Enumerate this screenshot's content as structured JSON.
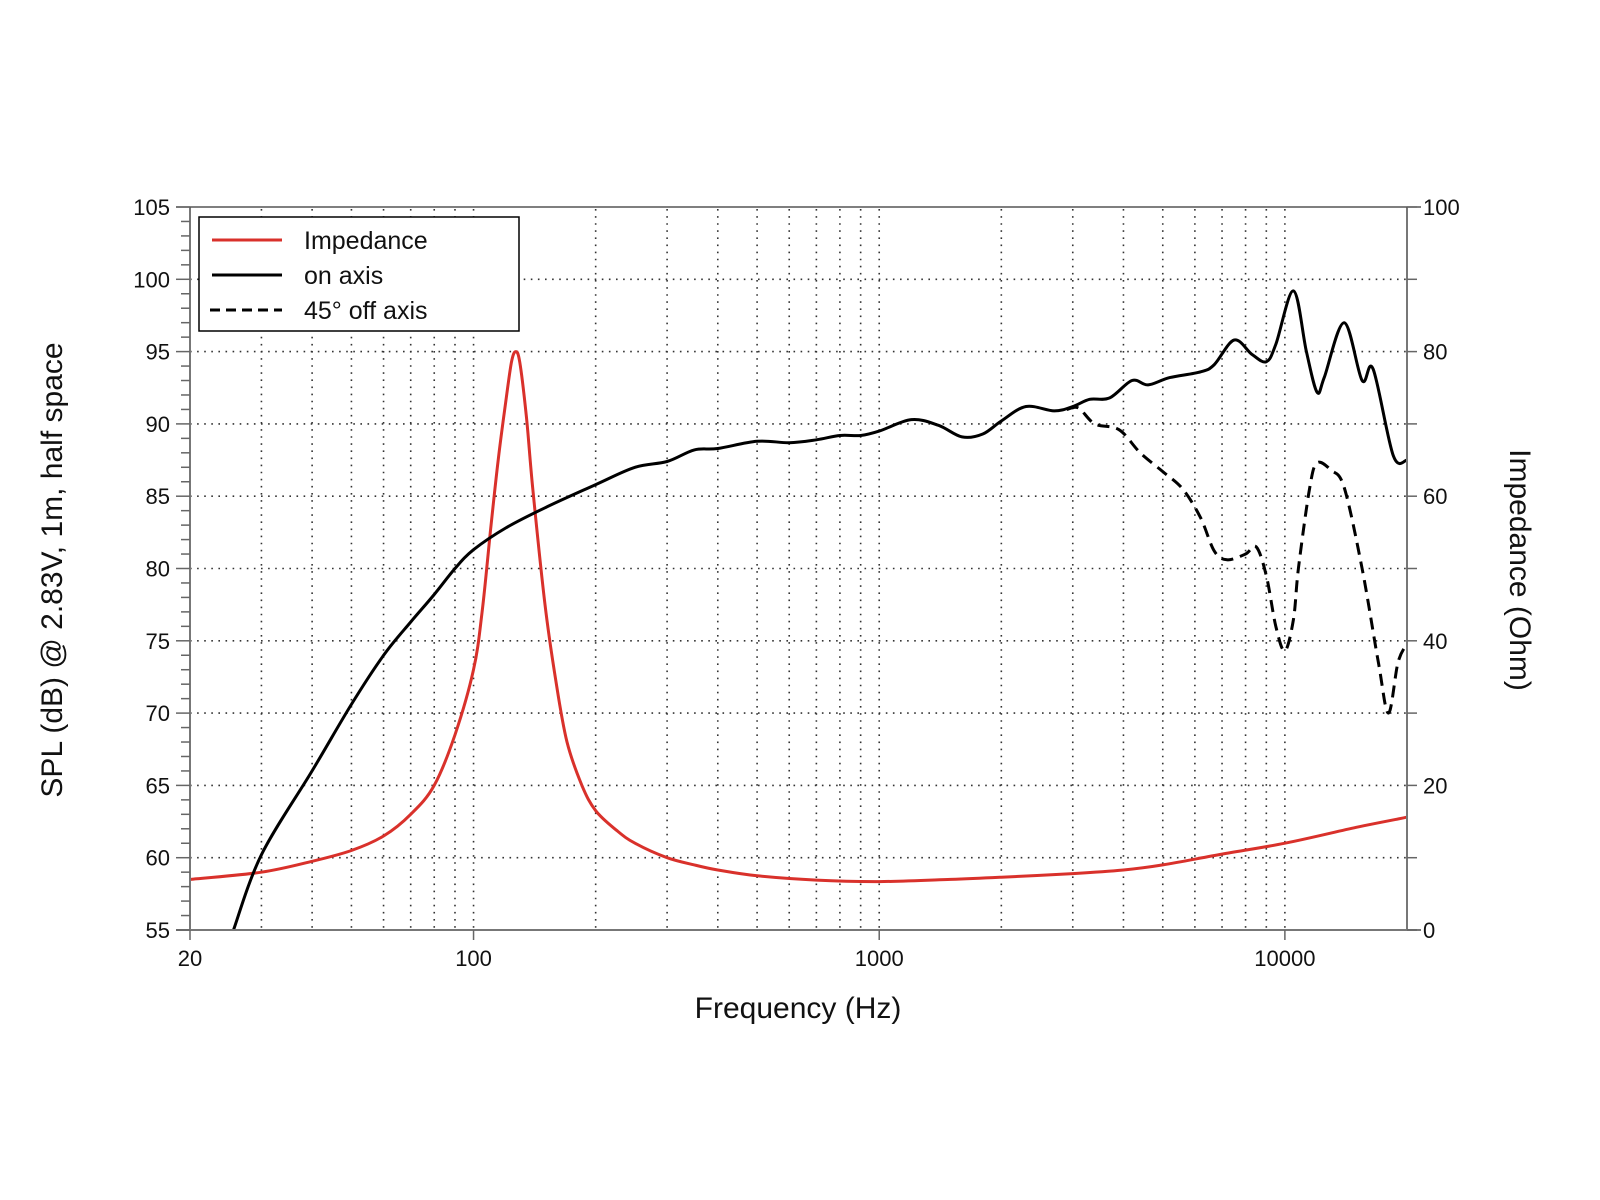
{
  "chart_data": {
    "type": "line",
    "title": "",
    "xlabel": "Frequency (Hz)",
    "ylabel": "SPL (dB) @ 2.83V, 1m, half space",
    "y2label": "Impedance (Ohm)",
    "xscale": "log",
    "xlim": [
      20,
      20000
    ],
    "ylim": [
      55,
      105
    ],
    "y2lim": [
      0,
      100
    ],
    "grid": true,
    "legend_position": "top-left",
    "x_ticks": [
      20,
      100,
      1000,
      10000
    ],
    "x_tick_labels": [
      "20",
      "100",
      "1000",
      "10000"
    ],
    "y_ticks": [
      55,
      60,
      65,
      70,
      75,
      80,
      85,
      90,
      95,
      100,
      105
    ],
    "y_tick_labels": [
      "55",
      "60",
      "65",
      "70",
      "75",
      "80",
      "85",
      "90",
      "95",
      "100",
      "105"
    ],
    "y2_ticks": [
      0,
      20,
      40,
      60,
      80,
      100
    ],
    "y2_tick_labels": [
      "0",
      "20",
      "40",
      "60",
      "80",
      "100"
    ],
    "series": [
      {
        "name": "Impedance",
        "axis": "right",
        "color": "#d9312b",
        "style": "solid",
        "x": [
          20,
          30,
          40,
          50,
          60,
          70,
          80,
          90,
          100,
          105,
          110,
          115,
          120,
          124,
          127,
          130,
          135,
          140,
          150,
          160,
          170,
          185,
          200,
          225,
          250,
          300,
          350,
          400,
          500,
          700,
          1000,
          1500,
          2000,
          3000,
          4000,
          5000,
          7000,
          10000,
          15000,
          20000
        ],
        "y": [
          7,
          8,
          9.5,
          11,
          13,
          16,
          20,
          27,
          36,
          44,
          55,
          65,
          73,
          78.5,
          80,
          78.5,
          71,
          61,
          45,
          34,
          26,
          20,
          16.5,
          13.8,
          12,
          10,
          9,
          8.3,
          7.5,
          6.9,
          6.7,
          7,
          7.3,
          7.8,
          8.3,
          9,
          10.5,
          12,
          14.2,
          15.6
        ]
      },
      {
        "name": "on axis",
        "axis": "left",
        "color": "#000000",
        "style": "solid",
        "x": [
          25.6,
          30,
          40,
          50,
          60,
          70,
          80,
          90,
          100,
          120,
          150,
          200,
          250,
          300,
          350,
          400,
          500,
          600,
          700,
          800,
          900,
          1000,
          1200,
          1400,
          1600,
          1800,
          2000,
          2300,
          2700,
          3000,
          3300,
          3700,
          4200,
          4600,
          5200,
          6200,
          6700,
          7500,
          8300,
          9000,
          9500,
          10500,
          11300,
          12000,
          12500,
          14000,
          15500,
          16500,
          18500,
          20000
        ],
        "y": [
          55,
          60.2,
          66,
          70.6,
          74,
          76.3,
          78.2,
          80,
          81.3,
          82.8,
          84.2,
          85.8,
          87,
          87.4,
          88.2,
          88.3,
          88.8,
          88.7,
          88.9,
          89.2,
          89.2,
          89.5,
          90.3,
          89.9,
          89.1,
          89.3,
          90.2,
          91.2,
          90.9,
          91.2,
          91.7,
          91.8,
          93.0,
          92.7,
          93.2,
          93.6,
          94.1,
          95.8,
          94.8,
          94.3,
          95.5,
          99.2,
          95.0,
          92.2,
          93.2,
          97.0,
          93.0,
          93.8,
          87.8,
          87.5
        ]
      },
      {
        "name": "45° off axis",
        "axis": "left",
        "color": "#000000",
        "style": "dashed",
        "x": [
          2900,
          3100,
          3400,
          3900,
          4400,
          5000,
          5600,
          6200,
          6700,
          7200,
          8000,
          8500,
          9000,
          9500,
          10000,
          10500,
          10800,
          11500,
          12000,
          13000,
          14000,
          15500,
          17000,
          18000,
          19000,
          20000
        ],
        "y": [
          91.0,
          91.1,
          90.0,
          89.6,
          88.0,
          86.7,
          85.5,
          83.5,
          81.2,
          80.6,
          81.0,
          81.5,
          79.5,
          76,
          74.3,
          76.5,
          80,
          85.5,
          87.3,
          86.8,
          85.6,
          80,
          73.5,
          70,
          73.5,
          74.8
        ]
      }
    ]
  }
}
